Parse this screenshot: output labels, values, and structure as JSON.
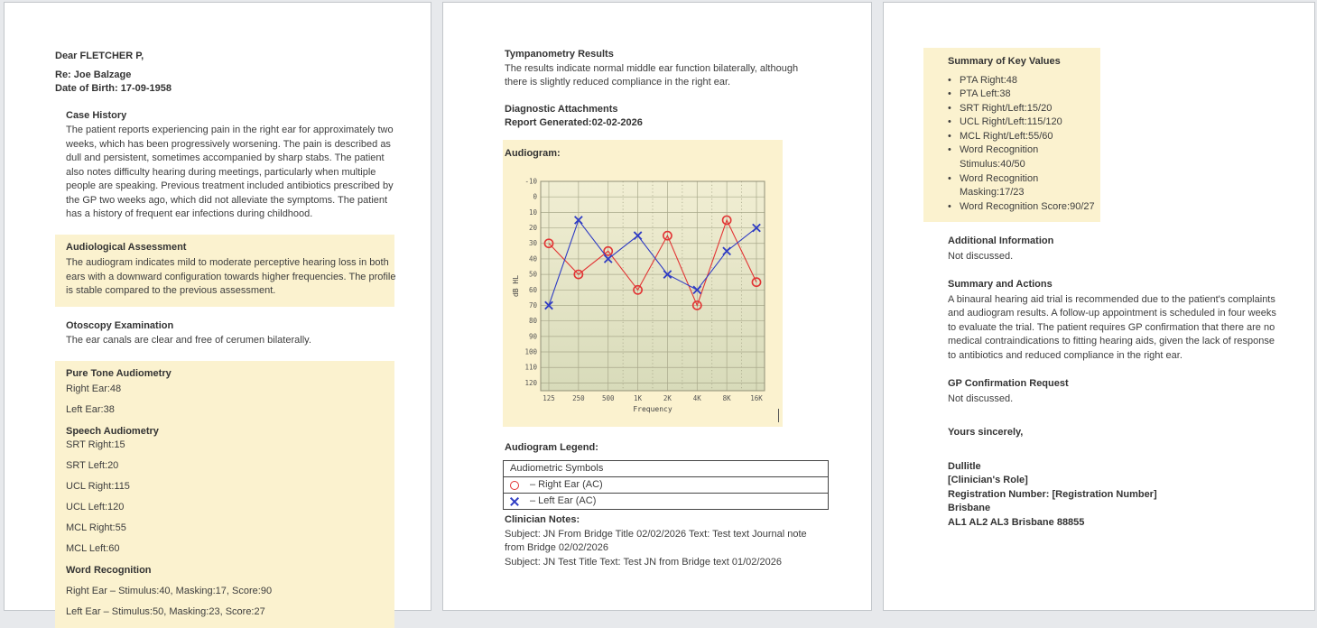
{
  "page1": {
    "greeting": "Dear FLETCHER P,",
    "re_line": "Re: Joe Balzage",
    "dob_line": "Date of Birth: 17-09-1958",
    "case_history": {
      "title": "Case History",
      "body": "The patient reports experiencing pain in the right ear for approximately two weeks, which has been progressively worsening. The pain is described as dull and persistent, sometimes accompanied by sharp stabs. The patient also notes difficulty hearing during meetings, particularly when multiple people are speaking. Previous treatment included antibiotics prescribed by the GP two weeks ago, which did not alleviate the symptoms. The patient has a history of frequent ear infections during childhood."
    },
    "audiological_assessment": {
      "title": "Audiological Assessment",
      "body": "The audiogram indicates mild to moderate perceptive hearing loss in both ears with a downward configuration towards higher frequencies. The profile is stable compared to the previous assessment."
    },
    "otoscopy": {
      "title": "Otoscopy Examination",
      "body": "The ear canals are clear and free of cerumen bilaterally."
    },
    "pure_tone": {
      "title": "Pure Tone Audiometry",
      "lines": [
        "Right Ear:48",
        "Left Ear:38"
      ]
    },
    "speech": {
      "title": "Speech Audiometry",
      "lines": [
        "SRT Right:15",
        "SRT Left:20",
        "UCL Right:115",
        "UCL Left:120",
        "MCL Right:55",
        "MCL Left:60"
      ]
    },
    "word_recognition": {
      "title": "Word Recognition",
      "lines": [
        "Right Ear – Stimulus:40, Masking:17, Score:90",
        "Left Ear – Stimulus:50, Masking:23, Score:27"
      ]
    }
  },
  "page2": {
    "tympanometry": {
      "title": "Tympanometry Results",
      "body": "The results indicate normal middle ear function bilaterally, although there is slightly reduced compliance in the right ear."
    },
    "diagnostic": {
      "title": "Diagnostic Attachments",
      "report_generated": "Report Generated:02-02-2026"
    },
    "audiogram_label": "Audiogram:",
    "legend_title": "Audiogram Legend:",
    "legend_table": {
      "header": "Audiometric Symbols",
      "rows": [
        {
          "symbol": "right-ear-circle",
          "label": "–  Right Ear (AC)"
        },
        {
          "symbol": "left-ear-x",
          "label": "–  Left Ear (AC)"
        }
      ]
    },
    "clinician_notes": {
      "title": "Clinician Notes:",
      "lines": [
        "Subject: JN From Bridge Title 02/02/2026 Text: Test text Journal note from Bridge 02/02/2026",
        "Subject: JN Test Title Text: Test JN from Bridge text 01/02/2026"
      ]
    }
  },
  "page3": {
    "summary_box": {
      "title": "Summary of Key Values",
      "items": [
        "PTA Right:48",
        "PTA Left:38",
        "SRT Right/Left:15/20",
        "UCL Right/Left:115/120",
        "MCL Right/Left:55/60",
        "Word Recognition Stimulus:40/50",
        "Word Recognition Masking:17/23",
        "Word Recognition Score:90/27"
      ]
    },
    "additional_info": {
      "title": "Additional Information",
      "body": "Not discussed."
    },
    "summary_actions": {
      "title": "Summary and Actions",
      "body": "A binaural hearing aid trial is recommended due to the patient's complaints and audiogram results. A follow-up appointment is scheduled in four weeks to evaluate the trial. The patient requires GP confirmation that there are no medical contraindications to fitting hearing aids, given the lack of response to antibiotics and reduced compliance in the right ear."
    },
    "gp_request": {
      "title": "GP Confirmation Request",
      "body": "Not discussed."
    },
    "closing": "Yours sincerely,",
    "signature": {
      "name": "Dullitle",
      "role": "[Clinician's Role]",
      "registration": "Registration Number: [Registration Number]",
      "city": "Brisbane",
      "address": "AL1 AL2 AL3 Brisbane 88855"
    }
  },
  "chart_data": {
    "type": "line",
    "title": "Audiogram",
    "x_categories": [
      "125",
      "250",
      "500",
      "1K",
      "2K",
      "4K",
      "8K",
      "16K"
    ],
    "xlabel": "Frequency",
    "ylabel": "dB HL",
    "ylim": [
      -10,
      120
    ],
    "y_inverted": true,
    "y_ticks": [
      -10,
      0,
      10,
      20,
      30,
      40,
      50,
      60,
      70,
      80,
      90,
      100,
      110,
      120
    ],
    "grid": true,
    "legend_position": "none",
    "series": [
      {
        "name": "Right Ear (AC)",
        "marker": "circle",
        "color": "#e23434",
        "values": [
          30,
          50,
          35,
          60,
          25,
          70,
          15,
          55
        ]
      },
      {
        "name": "Left Ear (AC)",
        "marker": "x",
        "color": "#2f3cc4",
        "values": [
          70,
          15,
          40,
          25,
          50,
          60,
          35,
          20
        ]
      }
    ],
    "plot_bg_top": "#f1eed3",
    "plot_bg_bottom": "#d8dbba",
    "grid_color": "#a9a98b"
  },
  "colors": {
    "highlight": "#fbf2cf",
    "canvas_bg": "#e7e9ec",
    "page_border": "#c2c6ca",
    "accent_red": "#e23434",
    "accent_blue": "#2f3cc4"
  }
}
